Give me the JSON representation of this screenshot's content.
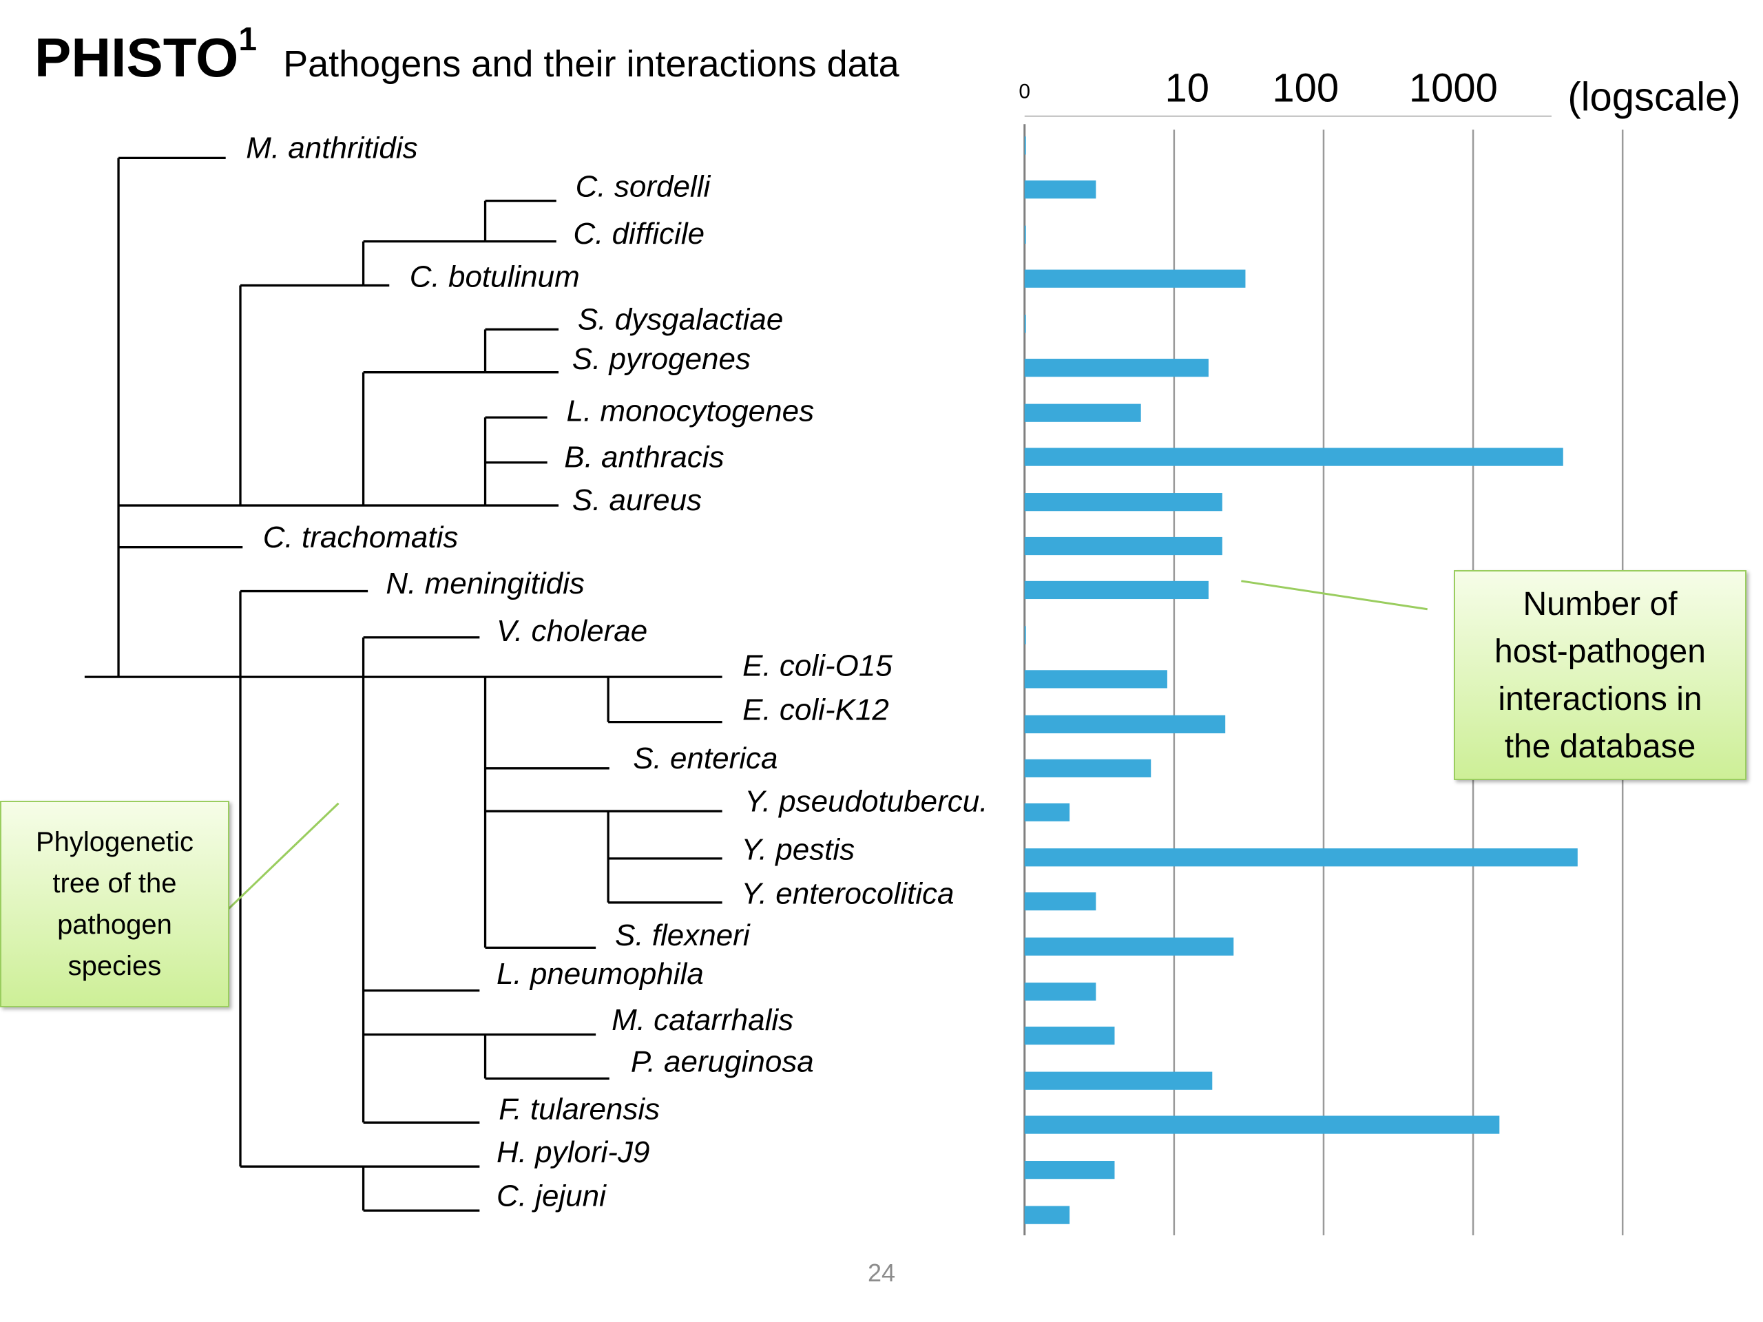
{
  "slide": {
    "title": "PHISTO",
    "title_superscript": "1",
    "subtitle": "Pathogens and their interactions data",
    "slide_number": "24"
  },
  "callouts": {
    "tree": "Phylogenetic\ntree of the\npathogen\nspecies",
    "bars": "Number of\nhost-pathogen\ninteractions in\nthe database"
  },
  "chart_data": {
    "type": "bar",
    "orientation": "horizontal",
    "x_scale": "log",
    "x_tick_labels": [
      "0",
      "10",
      "100",
      "1000"
    ],
    "x_axis_label": "(logscale)",
    "bar_color": "#3aa9da",
    "grid": true,
    "categories": [
      "M. anthritidis",
      "C. sordelli",
      "C. difficile",
      "C. botulinum",
      "S. dysgalactiae",
      "S. pyrogenes",
      "L. monocytogenes",
      "B. anthracis",
      "S. aureus",
      "C. trachomatis",
      "N. meningitidis",
      "V. cholerae",
      "E. coli-O15",
      "E. coli-K12",
      "S. enterica",
      "Y. pseudotubercu.",
      "Y. pestis",
      "Y. enterocolitica",
      "S. flexneri",
      "L. pneumophila",
      "M. catarrhalis",
      "P. aeruginosa",
      "F. tularensis",
      "H. pylori-J9",
      "C. jejuni"
    ],
    "values": [
      1,
      3,
      1,
      30,
      1,
      17,
      6,
      4000,
      21,
      21,
      17,
      1,
      9,
      22,
      7,
      2,
      5000,
      3,
      25,
      3,
      4,
      18,
      1500,
      4,
      2
    ]
  },
  "tree": {
    "leaves": [
      {
        "label": "M. anthritidis"
      },
      {
        "label": "C. sordelli"
      },
      {
        "label": "C. difficile"
      },
      {
        "label": "C. botulinum"
      },
      {
        "label": "S. dysgalactiae"
      },
      {
        "label": "S. pyrogenes"
      },
      {
        "label": "L. monocytogenes"
      },
      {
        "label": "B. anthracis"
      },
      {
        "label": "S. aureus"
      },
      {
        "label": "C. trachomatis"
      },
      {
        "label": "N. meningitidis"
      },
      {
        "label": "V. cholerae"
      },
      {
        "label": "E. coli-O15"
      },
      {
        "label": "E. coli-K12"
      },
      {
        "label": "S. enterica"
      },
      {
        "label": "Y. pseudotubercu."
      },
      {
        "label": "Y. pestis"
      },
      {
        "label": "Y. enterocolitica"
      },
      {
        "label": "S. flexneri"
      },
      {
        "label": "L. pneumophila"
      },
      {
        "label": "M. catarrhalis"
      },
      {
        "label": "P. aeruginosa"
      },
      {
        "label": "F. tularensis"
      },
      {
        "label": "H. pylori-J9"
      },
      {
        "label": "C. jejuni"
      }
    ]
  }
}
